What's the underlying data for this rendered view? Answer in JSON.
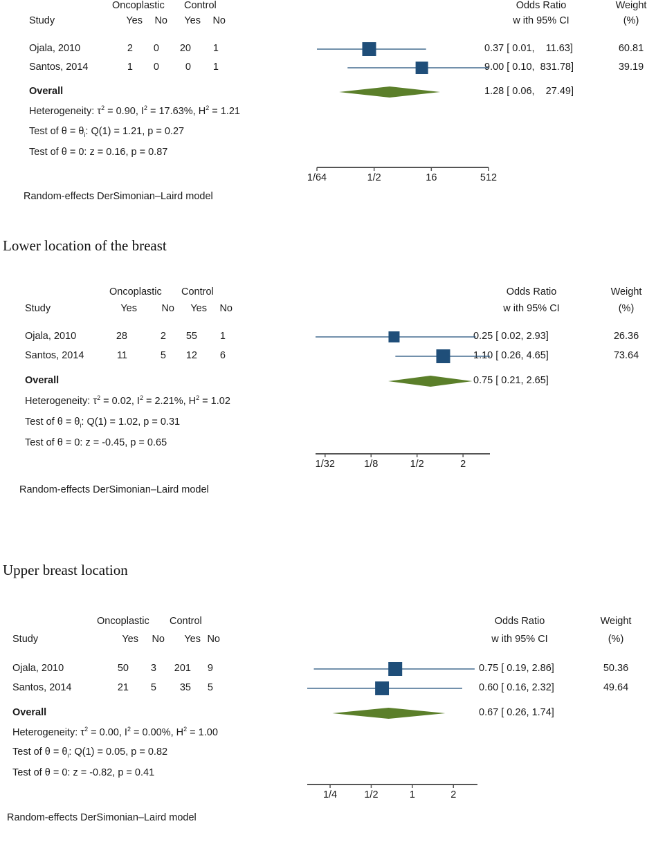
{
  "colors": {
    "marker": "#1f4e79",
    "ci_line": "#1f4e79",
    "diamond": "#5b7f2a",
    "axis": "#555555",
    "text": "#1a1a1a"
  },
  "captions": {
    "lower": "Lower location of the breast",
    "upper": "Upper breast location"
  },
  "chart_data": [
    {
      "type": "forest",
      "title": "",
      "headers": {
        "group1": "Oncoplastic",
        "group2": "Control",
        "study": "Study",
        "yes": "Yes",
        "no": "No",
        "effect1": "Odds Ratio",
        "effect2": "w ith 95% CI",
        "weight1": "Weight",
        "weight2": "(%)"
      },
      "studies": [
        {
          "name": "Ojala, 2010",
          "g1_yes": "2",
          "g1_no": "0",
          "g2_yes": "20",
          "g2_no": "1",
          "or": 0.37,
          "lo": 0.01,
          "hi": 11.63,
          "ci_text": "0.37 [ 0.01,    11.63]",
          "weight": 60.81,
          "weight_text": "60.81"
        },
        {
          "name": "Santos, 2014",
          "g1_yes": "1",
          "g1_no": "0",
          "g2_yes": "0",
          "g2_no": "1",
          "or": 9.0,
          "lo": 0.1,
          "hi": 831.78,
          "ci_text": "9.00 [ 0.10,  831.78]",
          "weight": 39.19,
          "weight_text": "39.19"
        }
      ],
      "overall": {
        "label": "Overall",
        "or": 1.28,
        "lo": 0.06,
        "hi": 27.49,
        "ci_text": "1.28 [ 0.06,    27.49]"
      },
      "heterogeneity": {
        "prefix": "Heterogeneity: τ",
        "tau2": " = 0.90, I",
        "i2": " = 17.63%, H",
        "h2": " = 1.21",
        "sup": "2"
      },
      "test_theta_i": {
        "prefix": "Test of θ = θ",
        "sub": "i",
        "rest": ": Q(1) = 1.21, p = 0.27"
      },
      "test_zero": "Test of θ = 0: z = 0.16, p = 0.87",
      "axis": {
        "scale": "log",
        "ticks": [
          "1/64",
          "1/2",
          "16",
          "512"
        ],
        "tick_values": [
          0.015625,
          0.5,
          16,
          512
        ]
      },
      "model": "Random-effects DerSimonian–Laird model"
    },
    {
      "type": "forest",
      "title": "",
      "headers": {
        "group1": "Oncoplastic",
        "group2": "Control",
        "study": "Study",
        "yes": "Yes",
        "no": "No",
        "effect1": "Odds Ratio",
        "effect2": "w ith 95% CI",
        "weight1": "Weight",
        "weight2": "(%)"
      },
      "studies": [
        {
          "name": "Ojala, 2010",
          "g1_yes": "28",
          "g1_no": "2",
          "g2_yes": "55",
          "g2_no": "1",
          "or": 0.25,
          "lo": 0.02,
          "hi": 2.93,
          "ci_text": "0.25 [ 0.02, 2.93]",
          "weight": 26.36,
          "weight_text": "26.36"
        },
        {
          "name": "Santos, 2014",
          "g1_yes": "11",
          "g1_no": "5",
          "g2_yes": "12",
          "g2_no": "6",
          "or": 1.1,
          "lo": 0.26,
          "hi": 4.65,
          "ci_text": "1.10 [ 0.26, 4.65]",
          "weight": 73.64,
          "weight_text": "73.64"
        }
      ],
      "overall": {
        "label": "Overall",
        "or": 0.75,
        "lo": 0.21,
        "hi": 2.65,
        "ci_text": "0.75 [ 0.21, 2.65]"
      },
      "heterogeneity": {
        "prefix": "Heterogeneity: τ",
        "tau2": " = 0.02, I",
        "i2": " = 2.21%, H",
        "h2": " = 1.02",
        "sup": "2"
      },
      "test_theta_i": {
        "prefix": "Test of θ = θ",
        "sub": "i",
        "rest": ": Q(1) = 1.02, p = 0.31"
      },
      "test_zero": "Test of θ = 0: z = -0.45, p = 0.65",
      "axis": {
        "scale": "log",
        "ticks": [
          "1/32",
          "1/8",
          "1/2",
          "2"
        ],
        "tick_values": [
          0.03125,
          0.125,
          0.5,
          2
        ]
      },
      "model": "Random-effects DerSimonian–Laird model"
    },
    {
      "type": "forest",
      "title": "",
      "headers": {
        "group1": "Oncoplastic",
        "group2": "Control",
        "study": "Study",
        "yes": "Yes",
        "no": "No",
        "effect1": "Odds Ratio",
        "effect2": "w ith 95% CI",
        "weight1": "Weight",
        "weight2": "(%)"
      },
      "studies": [
        {
          "name": "Ojala, 2010",
          "g1_yes": "50",
          "g1_no": "3",
          "g2_yes": "201",
          "g2_no": "9",
          "or": 0.75,
          "lo": 0.19,
          "hi": 2.86,
          "ci_text": "0.75 [ 0.19, 2.86]",
          "weight": 50.36,
          "weight_text": "50.36"
        },
        {
          "name": "Santos, 2014",
          "g1_yes": "21",
          "g1_no": "5",
          "g2_yes": "35",
          "g2_no": "5",
          "or": 0.6,
          "lo": 0.16,
          "hi": 2.32,
          "ci_text": "0.60 [ 0.16, 2.32]",
          "weight": 49.64,
          "weight_text": "49.64"
        }
      ],
      "overall": {
        "label": "Overall",
        "or": 0.67,
        "lo": 0.26,
        "hi": 1.74,
        "ci_text": "0.67 [ 0.26, 1.74]"
      },
      "heterogeneity": {
        "prefix": "Heterogeneity: τ",
        "tau2": " = 0.00, I",
        "i2": " = 0.00%, H",
        "h2": " = 1.00",
        "sup": "2"
      },
      "test_theta_i": {
        "prefix": "Test of θ = θ",
        "sub": "i",
        "rest": ": Q(1) = 0.05, p = 0.82"
      },
      "test_zero": "Test of θ = 0: z = -0.82, p = 0.41",
      "axis": {
        "scale": "log",
        "ticks": [
          "1/4",
          "1/2",
          "1",
          "2"
        ],
        "tick_values": [
          0.25,
          0.5,
          1,
          2
        ]
      },
      "model": "Random-effects DerSimonian–Laird model"
    }
  ]
}
